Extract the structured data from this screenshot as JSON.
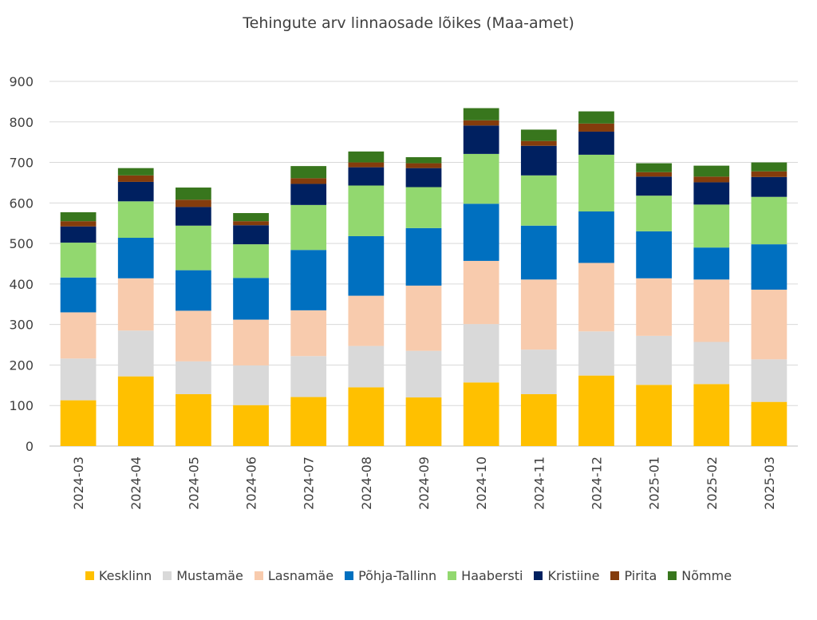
{
  "chart_data": {
    "type": "bar",
    "stacked": true,
    "title": "Tehingute arv linnaosade lõikes (Maa-amet)",
    "xlabel": "",
    "ylabel": "",
    "ylim": [
      0,
      900
    ],
    "yticks": [
      "0",
      "100",
      "200",
      "300",
      "400",
      "500",
      "600",
      "700",
      "800",
      "900"
    ],
    "grid": true,
    "legend_position": "bottom",
    "categories": [
      "2024-03",
      "2024-04",
      "2024-05",
      "2024-06",
      "2024-07",
      "2024-08",
      "2024-09",
      "2024-10",
      "2024-11",
      "2024-12",
      "2025-01",
      "2025-02",
      "2025-03"
    ],
    "series": [
      {
        "name": "Kesklinn",
        "color": "#FFC000",
        "values": [
          113,
          172,
          128,
          101,
          121,
          145,
          120,
          157,
          128,
          174,
          151,
          153,
          109
        ]
      },
      {
        "name": "Mustamäe",
        "color": "#D9D9D9",
        "values": [
          103,
          113,
          81,
          98,
          101,
          102,
          115,
          144,
          110,
          109,
          121,
          104,
          105
        ]
      },
      {
        "name": "Lasnamäe",
        "color": "#F8CBAD",
        "values": [
          114,
          129,
          125,
          113,
          113,
          124,
          161,
          156,
          173,
          169,
          142,
          154,
          172
        ]
      },
      {
        "name": "Põhja-Tallinn",
        "color": "#0070C0",
        "values": [
          86,
          100,
          100,
          103,
          149,
          147,
          142,
          141,
          133,
          127,
          116,
          79,
          112
        ]
      },
      {
        "name": "Haabersti",
        "color": "#92D86F",
        "values": [
          86,
          90,
          110,
          83,
          111,
          125,
          101,
          123,
          124,
          140,
          88,
          106,
          117
        ]
      },
      {
        "name": "Kristiine",
        "color": "#002060",
        "values": [
          40,
          48,
          46,
          47,
          52,
          45,
          47,
          70,
          73,
          57,
          47,
          55,
          49
        ]
      },
      {
        "name": "Pirita",
        "color": "#843C0C",
        "values": [
          13,
          16,
          18,
          10,
          14,
          12,
          12,
          13,
          12,
          20,
          11,
          14,
          14
        ]
      },
      {
        "name": "Nõmme",
        "color": "#38761D",
        "values": [
          22,
          18,
          30,
          20,
          30,
          27,
          15,
          30,
          28,
          30,
          22,
          27,
          22
        ]
      }
    ]
  }
}
